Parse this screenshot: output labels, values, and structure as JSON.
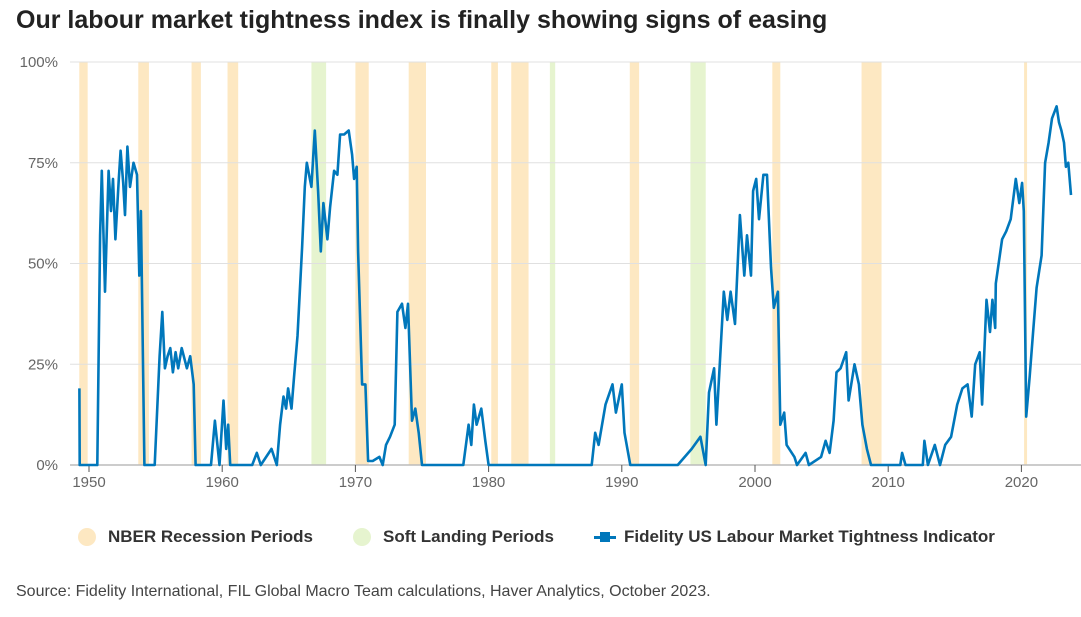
{
  "chart_data": {
    "type": "line",
    "title": "Our labour market tightness index is finally showing signs of easing",
    "xlabel": "",
    "ylabel": "",
    "xlim": [
      1948.6,
      2024.5
    ],
    "ylim": [
      0,
      100
    ],
    "y_ticks": [
      {
        "value": 0,
        "label": "0%"
      },
      {
        "value": 25,
        "label": "25%"
      },
      {
        "value": 50,
        "label": "50%"
      },
      {
        "value": 75,
        "label": "75%"
      },
      {
        "value": 100,
        "label": "100%"
      }
    ],
    "x_ticks": [
      {
        "value": 1950,
        "label": "1950"
      },
      {
        "value": 1960,
        "label": "1960"
      },
      {
        "value": 1970,
        "label": "1970"
      },
      {
        "value": 1980,
        "label": "1980"
      },
      {
        "value": 1990,
        "label": "1990"
      },
      {
        "value": 2000,
        "label": "2000"
      },
      {
        "value": 2010,
        "label": "2010"
      },
      {
        "value": 2020,
        "label": "2020"
      }
    ],
    "grid": true,
    "legend_position": "bottom",
    "legend": [
      {
        "name": "NBER Recession Periods",
        "color": "#fde8c2",
        "kind": "dot"
      },
      {
        "name": "Soft Landing Periods",
        "color": "#e6f4cf",
        "kind": "dot"
      },
      {
        "name": "Fidelity US Labour Market Tightness Indicator",
        "color": "#0077bb",
        "kind": "line"
      }
    ],
    "recession_periods": [
      [
        1949.27,
        1949.9
      ],
      [
        1953.7,
        1954.5
      ],
      [
        1957.7,
        1958.4
      ],
      [
        1960.4,
        1961.2
      ],
      [
        1970.0,
        1971.0
      ],
      [
        1974.0,
        1975.3
      ],
      [
        1980.2,
        1980.7
      ],
      [
        1981.7,
        1983.0
      ],
      [
        1990.6,
        1991.3
      ],
      [
        2001.3,
        2001.9
      ],
      [
        2008.0,
        2009.5
      ],
      [
        2020.2,
        2020.4
      ]
    ],
    "soft_landing_periods": [
      [
        1966.7,
        1967.8
      ],
      [
        1984.6,
        1985.0
      ],
      [
        1995.15,
        1996.3
      ]
    ],
    "series": [
      {
        "name": "Fidelity US Labour Market Tightness Indicator",
        "color": "#0077bb",
        "points": [
          [
            1949.28,
            19
          ],
          [
            1949.3,
            0
          ],
          [
            1950.62,
            0
          ],
          [
            1950.83,
            57
          ],
          [
            1950.96,
            73
          ],
          [
            1951.2,
            43
          ],
          [
            1951.47,
            73
          ],
          [
            1951.65,
            63
          ],
          [
            1951.8,
            71
          ],
          [
            1951.98,
            56
          ],
          [
            1952.24,
            71
          ],
          [
            1952.37,
            78
          ],
          [
            1952.57,
            70
          ],
          [
            1952.7,
            62
          ],
          [
            1952.88,
            79
          ],
          [
            1953.08,
            69
          ],
          [
            1953.34,
            75
          ],
          [
            1953.6,
            72
          ],
          [
            1953.78,
            47
          ],
          [
            1953.9,
            63
          ],
          [
            1954.16,
            0
          ],
          [
            1954.93,
            0
          ],
          [
            1955.3,
            27
          ],
          [
            1955.5,
            38
          ],
          [
            1955.7,
            24
          ],
          [
            1955.9,
            27
          ],
          [
            1956.1,
            29
          ],
          [
            1956.3,
            23
          ],
          [
            1956.5,
            28
          ],
          [
            1956.7,
            24
          ],
          [
            1956.96,
            29
          ],
          [
            1957.35,
            24
          ],
          [
            1957.6,
            27
          ],
          [
            1957.86,
            20
          ],
          [
            1958.0,
            0
          ],
          [
            1959.16,
            0
          ],
          [
            1959.45,
            11
          ],
          [
            1959.8,
            0
          ],
          [
            1960.1,
            16
          ],
          [
            1960.3,
            4
          ],
          [
            1960.45,
            10
          ],
          [
            1960.6,
            0
          ],
          [
            1962.25,
            0
          ],
          [
            1962.6,
            3
          ],
          [
            1962.9,
            0
          ],
          [
            1963.7,
            4
          ],
          [
            1964.1,
            0
          ],
          [
            1964.35,
            10
          ],
          [
            1964.6,
            17
          ],
          [
            1964.8,
            14
          ],
          [
            1964.95,
            19
          ],
          [
            1965.2,
            14
          ],
          [
            1965.4,
            22
          ],
          [
            1965.65,
            32
          ],
          [
            1966.0,
            54
          ],
          [
            1966.2,
            69
          ],
          [
            1966.35,
            75
          ],
          [
            1966.7,
            69
          ],
          [
            1966.95,
            83
          ],
          [
            1967.2,
            68
          ],
          [
            1967.4,
            53
          ],
          [
            1967.6,
            65
          ],
          [
            1967.9,
            56
          ],
          [
            1968.1,
            64
          ],
          [
            1968.4,
            73
          ],
          [
            1968.65,
            72
          ],
          [
            1968.85,
            82
          ],
          [
            1969.15,
            82
          ],
          [
            1969.5,
            83
          ],
          [
            1969.75,
            77
          ],
          [
            1969.9,
            71
          ],
          [
            1970.1,
            74
          ],
          [
            1970.2,
            53
          ],
          [
            1970.5,
            20
          ],
          [
            1970.75,
            20
          ],
          [
            1970.95,
            1
          ],
          [
            1971.3,
            1
          ],
          [
            1971.8,
            2
          ],
          [
            1972.05,
            0
          ],
          [
            1972.3,
            5
          ],
          [
            1972.6,
            7
          ],
          [
            1972.95,
            10
          ],
          [
            1973.15,
            38
          ],
          [
            1973.5,
            40
          ],
          [
            1973.75,
            34
          ],
          [
            1973.95,
            40
          ],
          [
            1974.25,
            11
          ],
          [
            1974.5,
            14
          ],
          [
            1974.75,
            8
          ],
          [
            1975.0,
            0
          ],
          [
            1978.1,
            0
          ],
          [
            1978.5,
            10
          ],
          [
            1978.7,
            5
          ],
          [
            1978.9,
            15
          ],
          [
            1979.1,
            10
          ],
          [
            1979.45,
            14
          ],
          [
            1979.75,
            6
          ],
          [
            1980.0,
            0
          ],
          [
            1987.74,
            0
          ],
          [
            1988.0,
            8
          ],
          [
            1988.26,
            5
          ],
          [
            1988.78,
            15
          ],
          [
            1989.3,
            20
          ],
          [
            1989.56,
            13
          ],
          [
            1990.0,
            20
          ],
          [
            1990.2,
            8
          ],
          [
            1990.64,
            0
          ],
          [
            1994.2,
            0
          ],
          [
            1995.25,
            4
          ],
          [
            1995.9,
            7
          ],
          [
            1996.3,
            0
          ],
          [
            1996.55,
            18
          ],
          [
            1996.93,
            24
          ],
          [
            1997.1,
            10
          ],
          [
            1997.37,
            26
          ],
          [
            1997.66,
            43
          ],
          [
            1997.92,
            36
          ],
          [
            1998.17,
            43
          ],
          [
            1998.5,
            35
          ],
          [
            1998.87,
            62
          ],
          [
            1999.2,
            47
          ],
          [
            1999.4,
            57
          ],
          [
            1999.7,
            47
          ],
          [
            1999.86,
            68
          ],
          [
            2000.09,
            71
          ],
          [
            2000.3,
            61
          ],
          [
            2000.63,
            72
          ],
          [
            2000.9,
            72
          ],
          [
            2001.2,
            49
          ],
          [
            2001.41,
            39
          ],
          [
            2001.72,
            43
          ],
          [
            2001.9,
            10
          ],
          [
            2002.19,
            13
          ],
          [
            2002.37,
            5
          ],
          [
            2002.96,
            2
          ],
          [
            2003.15,
            0
          ],
          [
            2003.8,
            3
          ],
          [
            2004.05,
            0
          ],
          [
            2004.96,
            2
          ],
          [
            2005.3,
            6
          ],
          [
            2005.6,
            3
          ],
          [
            2005.9,
            11
          ],
          [
            2006.12,
            23
          ],
          [
            2006.43,
            24
          ],
          [
            2006.85,
            28
          ],
          [
            2007.03,
            16
          ],
          [
            2007.47,
            25
          ],
          [
            2007.8,
            20
          ],
          [
            2008.06,
            10
          ],
          [
            2008.4,
            4
          ],
          [
            2008.71,
            0
          ],
          [
            2010.91,
            0
          ],
          [
            2011.04,
            3
          ],
          [
            2011.3,
            0
          ],
          [
            2012.6,
            0
          ],
          [
            2012.72,
            6
          ],
          [
            2012.98,
            0
          ],
          [
            2013.5,
            5
          ],
          [
            2013.89,
            0
          ],
          [
            2014.28,
            5
          ],
          [
            2014.72,
            7
          ],
          [
            2015.18,
            15
          ],
          [
            2015.57,
            19
          ],
          [
            2015.96,
            20
          ],
          [
            2016.27,
            12
          ],
          [
            2016.53,
            25
          ],
          [
            2016.87,
            28
          ],
          [
            2017.05,
            15
          ],
          [
            2017.38,
            41
          ],
          [
            2017.64,
            33
          ],
          [
            2017.82,
            41
          ],
          [
            2018.03,
            34
          ],
          [
            2018.08,
            45
          ],
          [
            2018.55,
            56
          ],
          [
            2018.86,
            58
          ],
          [
            2019.2,
            61
          ],
          [
            2019.58,
            71
          ],
          [
            2019.84,
            65
          ],
          [
            2020.05,
            70
          ],
          [
            2020.18,
            63
          ],
          [
            2020.36,
            12
          ],
          [
            2020.62,
            22
          ],
          [
            2020.88,
            33
          ],
          [
            2021.14,
            44
          ],
          [
            2021.52,
            52
          ],
          [
            2021.78,
            75
          ],
          [
            2022.04,
            80
          ],
          [
            2022.3,
            86
          ],
          [
            2022.64,
            89
          ],
          [
            2022.82,
            85
          ],
          [
            2023.0,
            83
          ],
          [
            2023.2,
            80
          ],
          [
            2023.34,
            74
          ],
          [
            2023.52,
            75
          ],
          [
            2023.72,
            67
          ]
        ]
      }
    ]
  },
  "source": "Source: Fidelity International, FIL Global Macro Team calculations, Haver Analytics, October 2023."
}
